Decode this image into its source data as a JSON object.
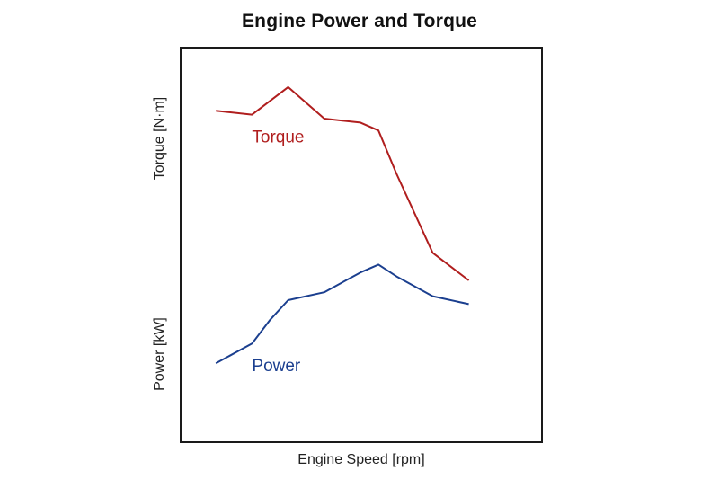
{
  "chart_data": {
    "type": "line",
    "title": "Engine Power and Torque",
    "xlabel": "Engine Speed [rpm]",
    "ylabel_upper": "Torque [N·m]",
    "ylabel_lower": "Power [kW]",
    "grid": false,
    "xlim": [
      0,
      10
    ],
    "ylim": [
      0,
      100
    ],
    "series": [
      {
        "name": "Torque",
        "color": "#b01e1e",
        "x": [
          1,
          2,
          3,
          4,
          5,
          5.5,
          6,
          7,
          8
        ],
        "values": [
          84,
          83,
          90,
          82,
          81,
          79,
          68,
          48,
          41
        ]
      },
      {
        "name": "Power",
        "color": "#1b3f8f",
        "x": [
          1,
          2,
          2.5,
          3,
          4,
          5,
          5.5,
          6,
          7,
          8
        ],
        "values": [
          20,
          25,
          31,
          36,
          38,
          43,
          45,
          42,
          37,
          35
        ]
      }
    ]
  }
}
